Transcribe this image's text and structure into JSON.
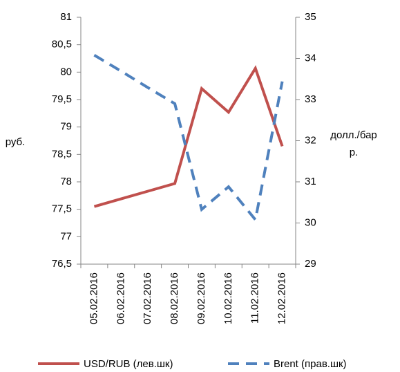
{
  "chart_data": {
    "type": "line",
    "categories": [
      "05.02.2016",
      "06.02.2016",
      "07.02.2016",
      "08.02.2016",
      "09.02.2016",
      "10.02.2016",
      "11.02.2016",
      "12.02.2016"
    ],
    "series": [
      {
        "name": "USD/RUB (лев.шк)",
        "color": "#c0504d",
        "dash": false,
        "values": [
          77.55,
          77.69,
          77.83,
          77.97,
          79.7,
          79.27,
          80.07,
          78.65
        ]
      },
      {
        "name": "Brent (прав.шк)",
        "color": "#4f81bd",
        "dash": true,
        "axis": "y2",
        "values": [
          34.08,
          33.69,
          33.29,
          32.9,
          30.33,
          30.88,
          30.08,
          33.44
        ]
      }
    ],
    "ylabel": "руб.",
    "y2label": "долл./барр.",
    "ylim": [
      76.5,
      81
    ],
    "yticks": [
      {
        "value": 76.5,
        "label": "76,5"
      },
      77,
      {
        "value": 77.5,
        "label": "77,5"
      },
      78,
      {
        "value": 78.5,
        "label": "78,5"
      },
      79,
      {
        "value": 79.5,
        "label": "79,5"
      },
      80,
      {
        "value": 80.5,
        "label": "80,5"
      },
      81
    ],
    "y2lim": [
      29,
      35
    ],
    "y2ticks": [
      29,
      30,
      31,
      32,
      33,
      34,
      35
    ]
  }
}
